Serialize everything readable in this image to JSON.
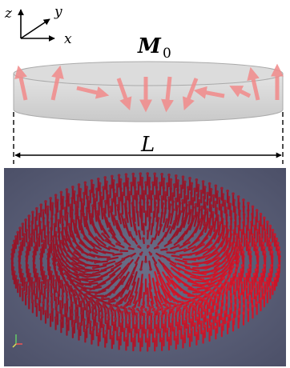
{
  "axes": {
    "z": "z",
    "y": "y",
    "x": "x"
  },
  "magnetization": {
    "symbol": "M",
    "subscript": "0"
  },
  "length": {
    "label": "L"
  }
}
